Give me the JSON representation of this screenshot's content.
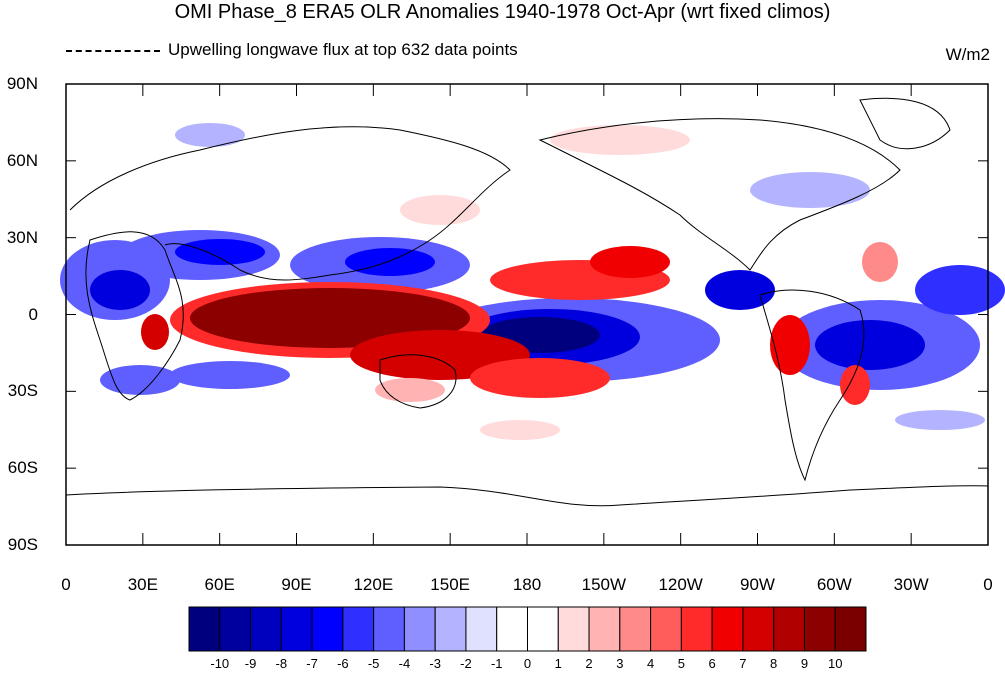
{
  "header": {
    "title": "OMI Phase_8 ERA5 OLR Anomalies 1940-1978 Oct-Apr (wrt fixed climos)",
    "subtitle": "Upwelling longwave flux at top   632 data points",
    "units": "W/m2"
  },
  "axes": {
    "y_labels": [
      "90N",
      "60N",
      "30N",
      "0",
      "30S",
      "60S",
      "90S"
    ],
    "x_labels": [
      "0",
      "30E",
      "60E",
      "90E",
      "120E",
      "150E",
      "180",
      "150W",
      "120W",
      "90W",
      "60W",
      "30W",
      "0"
    ]
  },
  "colorbar": {
    "labels": [
      "-10",
      "-9",
      "-8",
      "-7",
      "-6",
      "-5",
      "-4",
      "-3",
      "-2",
      "-1",
      "0",
      "1",
      "2",
      "3",
      "4",
      "5",
      "6",
      "7",
      "8",
      "9",
      "10"
    ],
    "colors": [
      "#00007f",
      "#00009f",
      "#0000bf",
      "#0000df",
      "#0000ff",
      "#2f2fff",
      "#5f5fff",
      "#8f8fff",
      "#b3b3ff",
      "#e0e0ff",
      "#ffffff",
      "#ffffff",
      "#ffdbdb",
      "#ffb3b3",
      "#ff8a8a",
      "#ff5c5c",
      "#ff2a2a",
      "#f00000",
      "#d40000",
      "#b00000",
      "#8c0000",
      "#7a0000"
    ]
  }
}
